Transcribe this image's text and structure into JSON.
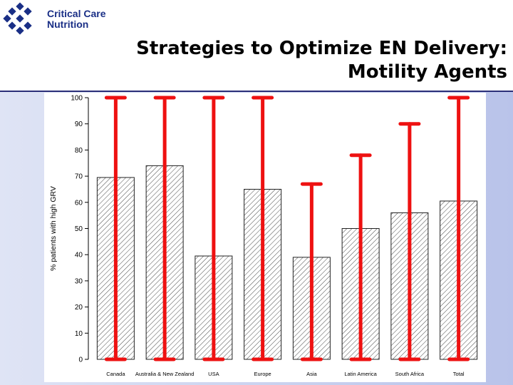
{
  "logo": {
    "line1": "Critical Care",
    "line2": "Nutrition",
    "color": "#1a2f86"
  },
  "title": {
    "line1": "Strategies to Optimize EN Delivery:",
    "line2": "Motility Agents"
  },
  "colors": {
    "header_rule": "#2b2f78",
    "error_bar": "#ee1111",
    "bar_hatch": "#333333"
  },
  "chart_data": {
    "type": "bar",
    "categories": [
      "Canada",
      "Australia & New Zealand",
      "USA",
      "Europe",
      "Asia",
      "Latin America",
      "South Africa",
      "Total"
    ],
    "values": [
      69.5,
      74,
      39.5,
      65,
      39,
      50,
      56,
      60.5
    ],
    "error_bars": {
      "lower": [
        0,
        0,
        0,
        0,
        0,
        0,
        0,
        0
      ],
      "upper": [
        100,
        100,
        100,
        100,
        67,
        78,
        90,
        100
      ]
    },
    "ylabel": "% patients with high GRV",
    "xlabel": "",
    "ylim": [
      0,
      100
    ],
    "yticks": [
      0,
      10,
      20,
      30,
      40,
      50,
      60,
      70,
      80,
      90,
      100
    ],
    "bar_fill": "diagonal hatch",
    "grid": false
  }
}
